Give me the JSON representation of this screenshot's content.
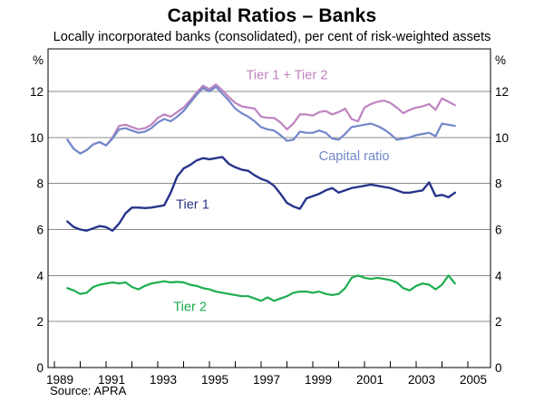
{
  "title": "Capital Ratios – Banks",
  "subtitle": "Locally incorporated banks (consolidated), per cent of risk-weighted assets",
  "source": "Source: APRA",
  "axes": {
    "unit_left": "%",
    "unit_right": "%",
    "y_ticks": [
      0,
      2,
      4,
      6,
      8,
      10,
      12
    ],
    "x_labels": [
      "1989",
      "1991",
      "1993",
      "1995",
      "1997",
      "1999",
      "2001",
      "2003",
      "2005"
    ],
    "x_year_ticks": [
      1989,
      1990,
      1991,
      1992,
      1993,
      1994,
      1995,
      1996,
      1997,
      1998,
      1999,
      2000,
      2001,
      2002,
      2003,
      2004,
      2005
    ]
  },
  "colors": {
    "tier1_plus_tier2": "#bf83c0",
    "capital_ratio": "#7287c9",
    "tier1": "#28348b",
    "tier2": "#1cad4f",
    "grid": "#8c8c8c",
    "frame": "#000000",
    "text": "#000000"
  },
  "chart_data": {
    "type": "line",
    "title": "Capital Ratios – Banks",
    "subtitle": "Locally incorporated banks (consolidated), per cent of risk-weighted assets",
    "ylabel": "%",
    "ylim": [
      0,
      13.85
    ],
    "xlim": [
      1988.75,
      2006.1
    ],
    "grid": true,
    "grid_values": [
      2,
      4,
      6,
      8,
      10,
      12
    ],
    "legend_position": "inline-labels",
    "x": [
      1989.5,
      1989.75,
      1990.0,
      1990.25,
      1990.5,
      1990.75,
      1991.0,
      1991.25,
      1991.5,
      1991.75,
      1992.0,
      1992.25,
      1992.5,
      1992.75,
      1993.0,
      1993.25,
      1993.5,
      1993.75,
      1994.0,
      1994.25,
      1994.5,
      1994.75,
      1995.0,
      1995.25,
      1995.5,
      1995.75,
      1996.0,
      1996.25,
      1996.5,
      1996.75,
      1997.0,
      1997.25,
      1997.5,
      1997.75,
      1998.0,
      1998.25,
      1998.5,
      1998.75,
      1999.0,
      1999.25,
      1999.5,
      1999.75,
      2000.0,
      2000.25,
      2000.5,
      2000.75,
      2001.0,
      2001.25,
      2001.5,
      2001.75,
      2002.0,
      2002.25,
      2002.5,
      2002.75,
      2003.0,
      2003.25,
      2003.5,
      2003.75,
      2004.0,
      2004.25,
      2004.5
    ],
    "series": [
      {
        "name": "Tier 1 + Tier 2",
        "color_key": "tier1_plus_tier2",
        "values": [
          9.9,
          9.5,
          9.3,
          9.45,
          9.7,
          9.8,
          9.65,
          10.0,
          10.5,
          10.55,
          10.45,
          10.35,
          10.4,
          10.55,
          10.85,
          11.0,
          10.9,
          11.1,
          11.3,
          11.6,
          11.95,
          12.25,
          12.1,
          12.3,
          12.05,
          11.75,
          11.5,
          11.35,
          11.3,
          11.25,
          10.9,
          10.85,
          10.85,
          10.65,
          10.35,
          10.6,
          11.0,
          11.0,
          10.95,
          11.1,
          11.15,
          11.0,
          11.1,
          11.25,
          10.8,
          10.7,
          11.3,
          11.45,
          11.55,
          11.6,
          11.5,
          11.3,
          11.05,
          11.2,
          11.3,
          11.35,
          11.45,
          11.2,
          11.7,
          11.55,
          11.4
        ]
      },
      {
        "name": "Capital ratio",
        "color_key": "capital_ratio",
        "values": [
          9.9,
          9.5,
          9.3,
          9.45,
          9.7,
          9.8,
          9.65,
          9.95,
          10.35,
          10.4,
          10.3,
          10.2,
          10.25,
          10.4,
          10.65,
          10.8,
          10.7,
          10.9,
          11.15,
          11.5,
          11.85,
          12.15,
          12.0,
          12.2,
          11.9,
          11.6,
          11.25,
          11.05,
          10.9,
          10.7,
          10.45,
          10.35,
          10.3,
          10.1,
          9.85,
          9.9,
          10.25,
          10.2,
          10.2,
          10.3,
          10.2,
          9.95,
          9.9,
          10.15,
          10.45,
          10.5,
          10.55,
          10.6,
          10.5,
          10.35,
          10.15,
          9.9,
          9.95,
          10.0,
          10.1,
          10.15,
          10.2,
          10.05,
          10.6,
          10.55,
          10.5
        ]
      },
      {
        "name": "Tier 1",
        "color_key": "tier1",
        "values": [
          6.35,
          6.1,
          6.0,
          5.95,
          6.05,
          6.15,
          6.1,
          5.95,
          6.25,
          6.7,
          6.95,
          6.95,
          6.93,
          6.95,
          7.0,
          7.05,
          7.6,
          8.3,
          8.65,
          8.8,
          9.0,
          9.1,
          9.05,
          9.1,
          9.15,
          8.85,
          8.7,
          8.6,
          8.55,
          8.35,
          8.2,
          8.1,
          7.9,
          7.55,
          7.15,
          7.0,
          6.9,
          7.35,
          7.45,
          7.55,
          7.7,
          7.8,
          7.6,
          7.7,
          7.8,
          7.85,
          7.9,
          7.95,
          7.9,
          7.85,
          7.8,
          7.7,
          7.6,
          7.6,
          7.65,
          7.7,
          8.05,
          7.45,
          7.5,
          7.4,
          7.6
        ]
      },
      {
        "name": "Tier 2",
        "color_key": "tier2",
        "values": [
          3.45,
          3.35,
          3.2,
          3.25,
          3.5,
          3.6,
          3.65,
          3.7,
          3.65,
          3.7,
          3.5,
          3.4,
          3.55,
          3.65,
          3.7,
          3.75,
          3.7,
          3.72,
          3.7,
          3.6,
          3.55,
          3.45,
          3.4,
          3.3,
          3.25,
          3.2,
          3.15,
          3.1,
          3.1,
          3.0,
          2.9,
          3.05,
          2.9,
          3.0,
          3.1,
          3.25,
          3.3,
          3.3,
          3.25,
          3.3,
          3.2,
          3.15,
          3.2,
          3.45,
          3.9,
          4.0,
          3.9,
          3.85,
          3.9,
          3.85,
          3.8,
          3.7,
          3.45,
          3.35,
          3.55,
          3.65,
          3.6,
          3.4,
          3.6,
          4.0,
          3.65
        ]
      }
    ],
    "annotations": [
      {
        "text": "Tier 1 + Tier 2",
        "x": 1998.0,
        "y": 12.52,
        "color_key": "tier1_plus_tier2"
      },
      {
        "text": "Capital ratio",
        "x": 2000.6,
        "y": 9.0,
        "color_key": "capital_ratio"
      },
      {
        "text": "Tier 1",
        "x": 1994.35,
        "y": 6.9,
        "color_key": "tier1"
      },
      {
        "text": "Tier 2",
        "x": 1994.25,
        "y": 2.45,
        "color_key": "tier2"
      }
    ]
  }
}
